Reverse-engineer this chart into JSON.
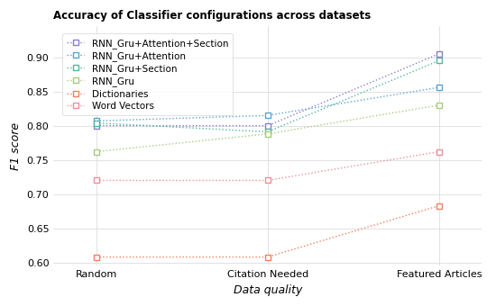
{
  "title": "Accuracy of Classifier configurations across datasets",
  "xlabel": "Data quality",
  "ylabel": "F1 score",
  "x_labels": [
    "Random",
    "Citation Needed",
    "Featured Articles"
  ],
  "x_positions": [
    0,
    1,
    2
  ],
  "ylim": [
    0.595,
    0.945
  ],
  "yticks": [
    0.6,
    0.65,
    0.7,
    0.75,
    0.8,
    0.85,
    0.9
  ],
  "series": [
    {
      "label": "RNN_Gru+Attention+Section",
      "values": [
        0.8,
        0.8,
        0.905
      ],
      "color": "#8B7EC8",
      "marker": "s",
      "linestyle": ":"
    },
    {
      "label": "RNN_Gru+Attention",
      "values": [
        0.807,
        0.815,
        0.856
      ],
      "color": "#5BA4CF",
      "marker": "s",
      "linestyle": ":"
    },
    {
      "label": "RNN_Gru+Section",
      "values": [
        0.804,
        0.791,
        0.895
      ],
      "color": "#50B8A0",
      "marker": "s",
      "linestyle": ":"
    },
    {
      "label": "RNN_Gru",
      "values": [
        0.762,
        0.788,
        0.83
      ],
      "color": "#A8CC7A",
      "marker": "s",
      "linestyle": ":"
    },
    {
      "label": "Dictionaries",
      "values": [
        0.608,
        0.608,
        0.683
      ],
      "color": "#F08060",
      "marker": "s",
      "linestyle": ":"
    },
    {
      "label": "Word Vectors",
      "values": [
        0.72,
        0.72,
        0.762
      ],
      "color": "#E8909A",
      "marker": "s",
      "linestyle": ":"
    }
  ],
  "background_color": "#FFFFFF",
  "grid_color": "#DDDDDD",
  "title_fontsize": 8.5,
  "label_fontsize": 9,
  "tick_fontsize": 8,
  "legend_fontsize": 7.5
}
